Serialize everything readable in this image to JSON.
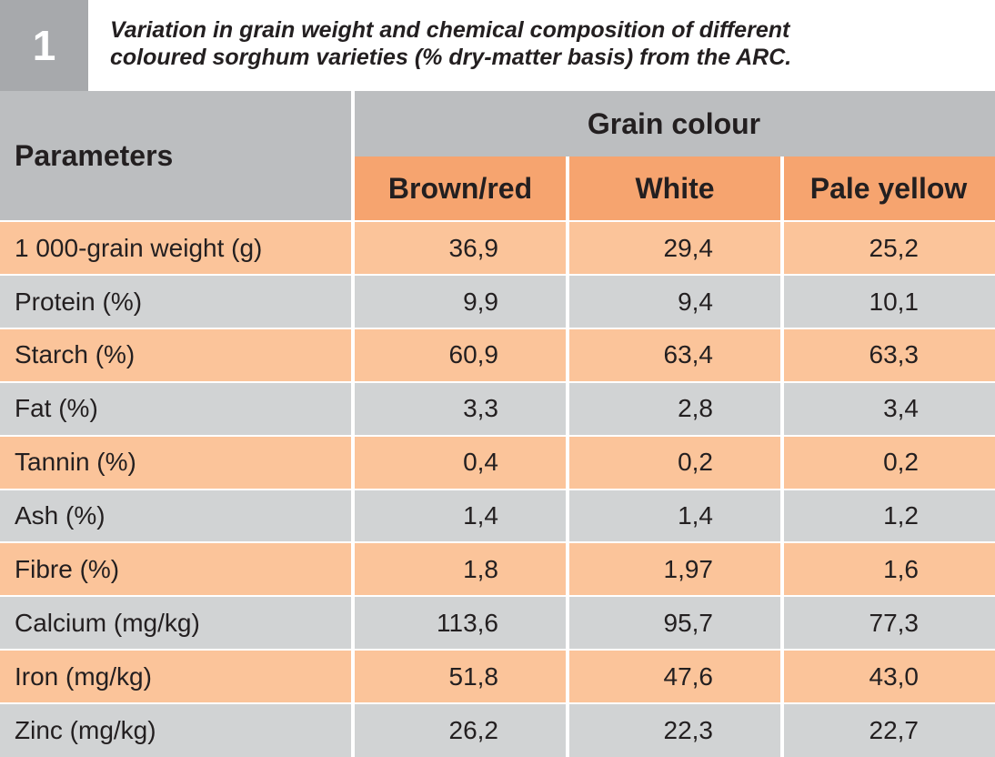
{
  "table_number": "1",
  "caption": {
    "line1": "Variation in grain weight and chemical composition of different",
    "line2": "coloured sorghum varieties (% dry-matter basis) from the ARC."
  },
  "header": {
    "parameters": "Parameters",
    "group": "Grain colour",
    "columns": [
      "Brown/red",
      "White",
      "Pale yellow"
    ]
  },
  "rows": [
    {
      "label": "1 000-grain weight (g)",
      "values": [
        "36,9",
        "29,4",
        "25,2"
      ]
    },
    {
      "label": "Protein (%)",
      "values": [
        "9,9",
        "9,4",
        "10,1"
      ]
    },
    {
      "label": "Starch (%)",
      "values": [
        "60,9",
        "63,4",
        "63,3"
      ]
    },
    {
      "label": "Fat (%)",
      "values": [
        "3,3",
        "2,8",
        "3,4"
      ]
    },
    {
      "label": "Tannin (%)",
      "values": [
        "0,4",
        "0,2",
        "0,2"
      ]
    },
    {
      "label": "Ash (%)",
      "values": [
        "1,4",
        "1,4",
        "1,2"
      ]
    },
    {
      "label": "Fibre (%)",
      "values": [
        "1,8",
        "1,97",
        "1,6"
      ]
    },
    {
      "label": "Calcium (mg/kg)",
      "values": [
        "113,6",
        "95,7",
        "77,3"
      ]
    },
    {
      "label": "Iron (mg/kg)",
      "values": [
        "51,8",
        "47,6",
        "43,0"
      ]
    },
    {
      "label": "Zinc (mg/kg)",
      "values": [
        "26,2",
        "22,3",
        "22,7"
      ]
    }
  ],
  "colors": {
    "number_box": "#a7a9ac",
    "header_gray": "#bcbec0",
    "header_orange": "#f6a46f",
    "row_orange": "#fbc49a",
    "row_gray": "#d1d3d4",
    "text": "#231f20"
  }
}
